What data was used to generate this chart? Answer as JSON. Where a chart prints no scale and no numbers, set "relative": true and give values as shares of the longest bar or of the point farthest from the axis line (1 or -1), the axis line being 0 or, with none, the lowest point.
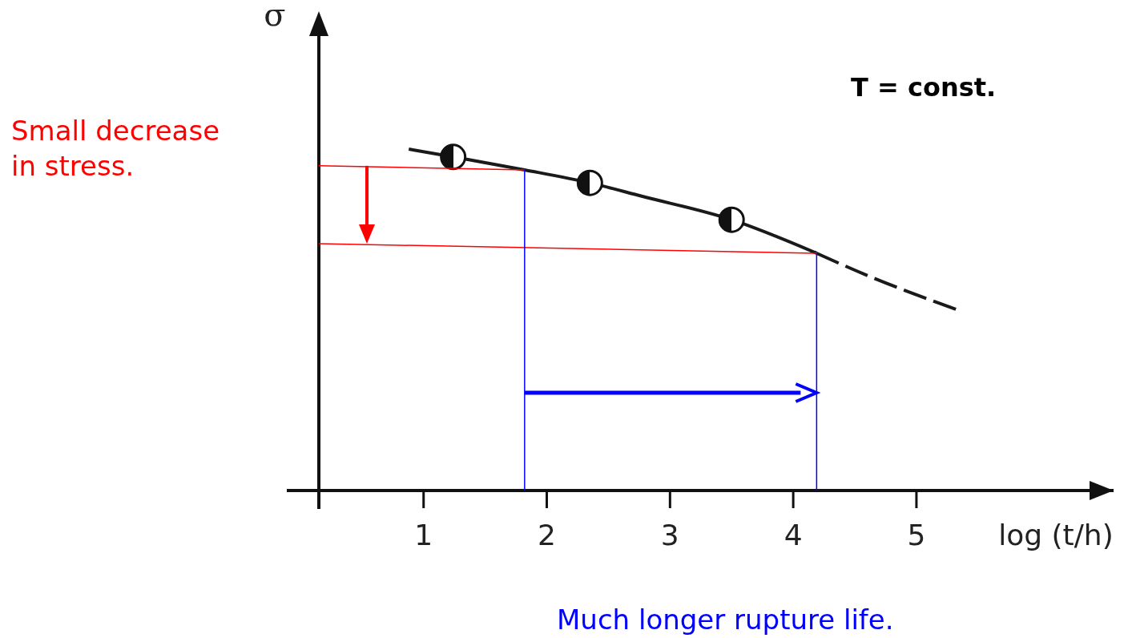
{
  "chart_data": {
    "type": "line",
    "relative": true,
    "xlabel": "log (t/h)",
    "ylabel": "σ",
    "xlim": [
      0.15,
      6.6
    ],
    "xticks": [
      1,
      2,
      3,
      4,
      5
    ],
    "grid": false,
    "series": [
      {
        "type": "line",
        "color": "#1a1a1a",
        "line_style": "solid",
        "x": [
          0.88,
          1.24,
          1.82,
          2.35,
          2.77,
          3.5,
          4.19
        ],
        "values": [
          1,
          0.977,
          0.939,
          0.901,
          0.862,
          0.793,
          0.695
        ]
      },
      {
        "type": "line",
        "color": "#1a1a1a",
        "line_style": "dashed",
        "x": [
          4.19,
          4.6,
          5.32
        ],
        "values": [
          0.695,
          0.63,
          0.531
        ]
      },
      {
        "type": "scatter",
        "color": "#111111",
        "marker": "circle",
        "x": [
          1.24,
          2.35,
          3.5
        ],
        "values": [
          0.977,
          0.901,
          0.793
        ]
      },
      {
        "type": "line",
        "color": "#ff0000",
        "line_style": "solid",
        "x": [
          0.15,
          1.82
        ],
        "values": [
          0.951,
          0.939
        ]
      },
      {
        "type": "line",
        "color": "#ff0000",
        "line_style": "solid",
        "x": [
          0.15,
          4.19
        ],
        "values": [
          0.723,
          0.695
        ]
      },
      {
        "type": "line",
        "color": "#0000ff",
        "line_style": "solid",
        "x": [
          1.82,
          1.82
        ],
        "values": [
          0,
          0.939
        ]
      },
      {
        "type": "line",
        "color": "#0000ff",
        "line_style": "solid",
        "x": [
          4.19,
          4.19
        ],
        "values": [
          0,
          0.695
        ]
      }
    ],
    "annotations": [
      "Small decrease in stress.",
      "Much longer rupture life.",
      "T = const."
    ]
  }
}
